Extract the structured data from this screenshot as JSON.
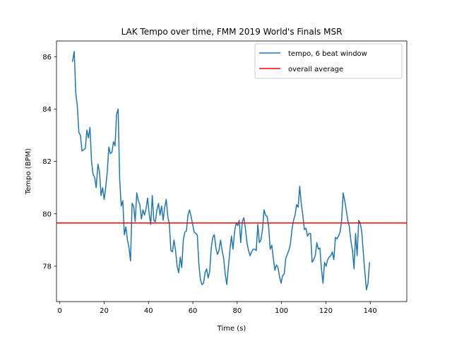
{
  "chart_data": {
    "type": "line",
    "title": "LAK Tempo over time, FMM 2019 World's Finals MSR",
    "xlabel": "Time (s)",
    "ylabel": "Tempo (BPM)",
    "xlim": [
      -1.5,
      156.5
    ],
    "ylim": [
      76.65,
      86.6
    ],
    "xticks": [
      0,
      20,
      40,
      60,
      80,
      100,
      120,
      140
    ],
    "yticks": [
      78,
      80,
      82,
      84,
      86
    ],
    "grid": false,
    "legend_position": "upper right",
    "series": [
      {
        "name": "tempo, 6 beat window",
        "color": "#1f77b4",
        "points": [
          [
            5.7,
            85.8
          ],
          [
            6.5,
            86.2
          ],
          [
            7.2,
            84.6
          ],
          [
            7.9,
            84.1
          ],
          [
            8.6,
            83.1
          ],
          [
            9.3,
            83.0
          ],
          [
            10.0,
            82.4
          ],
          [
            10.8,
            82.45
          ],
          [
            11.5,
            82.5
          ],
          [
            12.2,
            83.2
          ],
          [
            12.9,
            82.9
          ],
          [
            13.6,
            83.3
          ],
          [
            14.3,
            82.0
          ],
          [
            15.0,
            81.5
          ],
          [
            15.7,
            81.4
          ],
          [
            16.4,
            81.0
          ],
          [
            17.2,
            81.9
          ],
          [
            17.9,
            81.6
          ],
          [
            18.6,
            80.7
          ],
          [
            19.3,
            81.0
          ],
          [
            20.0,
            80.55
          ],
          [
            20.7,
            81.0
          ],
          [
            21.4,
            81.6
          ],
          [
            22.1,
            82.55
          ],
          [
            22.8,
            82.3
          ],
          [
            23.5,
            82.35
          ],
          [
            24.2,
            82.75
          ],
          [
            24.9,
            82.6
          ],
          [
            25.6,
            83.8
          ],
          [
            26.3,
            84.0
          ],
          [
            27.0,
            81.3
          ],
          [
            27.7,
            80.3
          ],
          [
            28.4,
            80.5
          ],
          [
            29.1,
            79.2
          ],
          [
            29.8,
            79.5
          ],
          [
            30.5,
            79.0
          ],
          [
            31.2,
            78.7
          ],
          [
            31.9,
            78.2
          ],
          [
            32.6,
            80.4
          ],
          [
            33.3,
            80.3
          ],
          [
            34.0,
            79.7
          ],
          [
            34.7,
            80.8
          ],
          [
            35.4,
            80.5
          ],
          [
            36.1,
            80.35
          ],
          [
            36.8,
            79.8
          ],
          [
            37.5,
            80.15
          ],
          [
            38.2,
            79.95
          ],
          [
            38.9,
            80.2
          ],
          [
            39.6,
            80.6
          ],
          [
            40.3,
            80.0
          ],
          [
            41.0,
            79.6
          ],
          [
            41.7,
            80.7
          ],
          [
            42.4,
            79.75
          ],
          [
            43.1,
            79.7
          ],
          [
            43.8,
            80.15
          ],
          [
            44.5,
            80.4
          ],
          [
            45.2,
            79.95
          ],
          [
            45.9,
            80.3
          ],
          [
            46.6,
            79.75
          ],
          [
            47.3,
            80.25
          ],
          [
            48.0,
            80.55
          ],
          [
            48.7,
            79.9
          ],
          [
            49.4,
            79.6
          ],
          [
            50.1,
            78.6
          ],
          [
            50.8,
            78.55
          ],
          [
            51.5,
            79.0
          ],
          [
            52.2,
            78.6
          ],
          [
            52.9,
            78.0
          ],
          [
            53.6,
            77.75
          ],
          [
            54.3,
            78.35
          ],
          [
            55.0,
            77.95
          ],
          [
            55.7,
            79.0
          ],
          [
            56.4,
            79.3
          ],
          [
            57.1,
            79.35
          ],
          [
            57.8,
            79.95
          ],
          [
            58.5,
            80.15
          ],
          [
            59.2,
            79.9
          ],
          [
            59.9,
            79.6
          ],
          [
            60.6,
            79.3
          ],
          [
            61.3,
            79.25
          ],
          [
            62.0,
            79.2
          ],
          [
            62.7,
            78.1
          ],
          [
            63.4,
            77.5
          ],
          [
            64.1,
            77.3
          ],
          [
            64.8,
            77.35
          ],
          [
            65.5,
            77.75
          ],
          [
            66.2,
            77.9
          ],
          [
            66.9,
            77.55
          ],
          [
            67.6,
            77.8
          ],
          [
            68.3,
            78.7
          ],
          [
            69.0,
            79.1
          ],
          [
            69.7,
            79.2
          ],
          [
            70.4,
            78.7
          ],
          [
            71.1,
            78.45
          ],
          [
            71.8,
            78.6
          ],
          [
            72.5,
            79.0
          ],
          [
            73.2,
            78.6
          ],
          [
            73.9,
            78.3
          ],
          [
            74.6,
            77.7
          ],
          [
            75.3,
            77.3
          ],
          [
            76.0,
            77.95
          ],
          [
            76.7,
            78.6
          ],
          [
            77.4,
            79.15
          ],
          [
            78.1,
            78.65
          ],
          [
            78.8,
            79.3
          ],
          [
            79.5,
            79.65
          ],
          [
            80.2,
            79.55
          ],
          [
            80.9,
            79.75
          ],
          [
            81.6,
            78.9
          ],
          [
            82.3,
            79.7
          ],
          [
            83.0,
            79.85
          ],
          [
            83.7,
            79.45
          ],
          [
            84.4,
            78.9
          ],
          [
            85.1,
            78.6
          ],
          [
            85.8,
            78.4
          ],
          [
            86.5,
            78.55
          ],
          [
            87.2,
            78.65
          ],
          [
            87.9,
            78.65
          ],
          [
            88.6,
            78.6
          ],
          [
            89.3,
            79.6
          ],
          [
            90.0,
            78.9
          ],
          [
            90.7,
            79.0
          ],
          [
            91.4,
            79.4
          ],
          [
            92.1,
            80.15
          ],
          [
            92.8,
            79.95
          ],
          [
            93.5,
            79.9
          ],
          [
            94.2,
            79.5
          ],
          [
            94.9,
            78.65
          ],
          [
            95.6,
            78.8
          ],
          [
            96.3,
            78.3
          ],
          [
            97.0,
            77.85
          ],
          [
            97.7,
            78.05
          ],
          [
            98.4,
            77.95
          ],
          [
            99.1,
            77.6
          ],
          [
            99.8,
            77.35
          ],
          [
            100.5,
            77.65
          ],
          [
            101.2,
            77.7
          ],
          [
            101.9,
            78.3
          ],
          [
            102.6,
            78.45
          ],
          [
            103.3,
            78.6
          ],
          [
            104.0,
            78.85
          ],
          [
            104.7,
            79.4
          ],
          [
            105.4,
            79.75
          ],
          [
            106.1,
            79.95
          ],
          [
            106.8,
            80.35
          ],
          [
            107.5,
            80.25
          ],
          [
            108.2,
            81.05
          ],
          [
            108.9,
            80.4
          ],
          [
            109.6,
            79.95
          ],
          [
            110.3,
            79.4
          ],
          [
            111.0,
            79.45
          ],
          [
            111.7,
            79.15
          ],
          [
            112.4,
            79.25
          ],
          [
            113.1,
            79.25
          ],
          [
            113.8,
            78.15
          ],
          [
            114.5,
            78.25
          ],
          [
            115.2,
            78.4
          ],
          [
            115.9,
            78.9
          ],
          [
            116.6,
            78.65
          ],
          [
            117.3,
            78.7
          ],
          [
            118.0,
            77.9
          ],
          [
            118.7,
            77.35
          ],
          [
            119.4,
            78.15
          ],
          [
            120.1,
            78.0
          ],
          [
            120.8,
            78.25
          ],
          [
            121.5,
            78.35
          ],
          [
            122.2,
            78.4
          ],
          [
            122.9,
            78.55
          ],
          [
            123.6,
            78.25
          ],
          [
            124.3,
            79.1
          ],
          [
            125.0,
            79.05
          ],
          [
            125.7,
            79.15
          ],
          [
            126.4,
            79.3
          ],
          [
            127.1,
            79.75
          ],
          [
            127.8,
            80.8
          ],
          [
            128.5,
            80.5
          ],
          [
            129.2,
            80.15
          ],
          [
            129.9,
            79.75
          ],
          [
            130.6,
            79.5
          ],
          [
            131.3,
            78.95
          ],
          [
            132.0,
            78.6
          ],
          [
            132.7,
            77.9
          ],
          [
            133.4,
            79.25
          ],
          [
            134.1,
            78.4
          ],
          [
            134.8,
            79.75
          ],
          [
            135.5,
            79.65
          ],
          [
            136.2,
            79.3
          ],
          [
            136.9,
            78.5
          ],
          [
            137.6,
            77.75
          ],
          [
            138.3,
            77.1
          ],
          [
            139.0,
            77.35
          ],
          [
            139.7,
            78.15
          ]
        ]
      },
      {
        "name": "overall average",
        "color": "#ff0000",
        "constant": 79.65
      }
    ]
  }
}
